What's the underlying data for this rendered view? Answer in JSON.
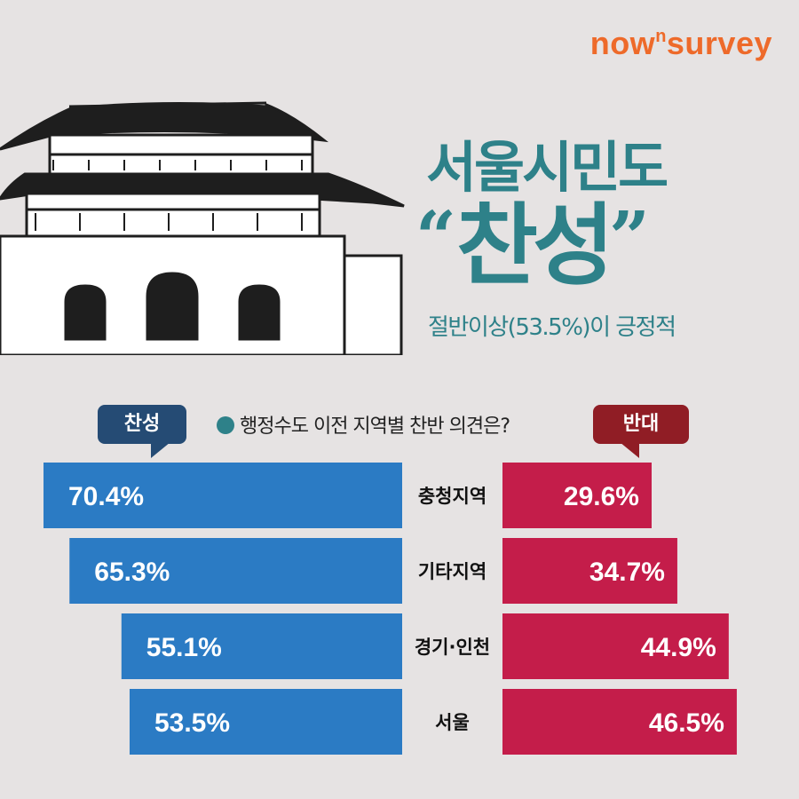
{
  "brand": {
    "main_a": "now",
    "sup": "n",
    "main_b": "survey",
    "color": "#ee6a2a"
  },
  "headline": {
    "line1": "서울시민도",
    "line2": "찬성",
    "open_quote": "“",
    "close_quote": "”",
    "subtitle": "절반이상(53.5%)이 긍정적",
    "color": "#2e8189"
  },
  "legend": {
    "agree": "찬성",
    "disagree": "반대",
    "question": "행정수도 이전 지역별 찬반 의견은?"
  },
  "chart_data": {
    "type": "bar",
    "orientation": "horizontal-diverging",
    "title": "행정수도 이전 지역별 찬반 의견은?",
    "categories": [
      "충청지역",
      "기타지역",
      "경기·인천",
      "서울"
    ],
    "series": [
      {
        "name": "찬성",
        "values": [
          70.4,
          65.3,
          55.1,
          53.5
        ],
        "labels": [
          "70.4%",
          "65.3%",
          "55.1%",
          "53.5%"
        ],
        "color": "#2b7bc4"
      },
      {
        "name": "반대",
        "values": [
          29.6,
          34.7,
          44.9,
          46.5
        ],
        "labels": [
          "29.6%",
          "34.7%",
          "44.9%",
          "46.5%"
        ],
        "color": "#c41d4a"
      }
    ],
    "unit": "%"
  }
}
